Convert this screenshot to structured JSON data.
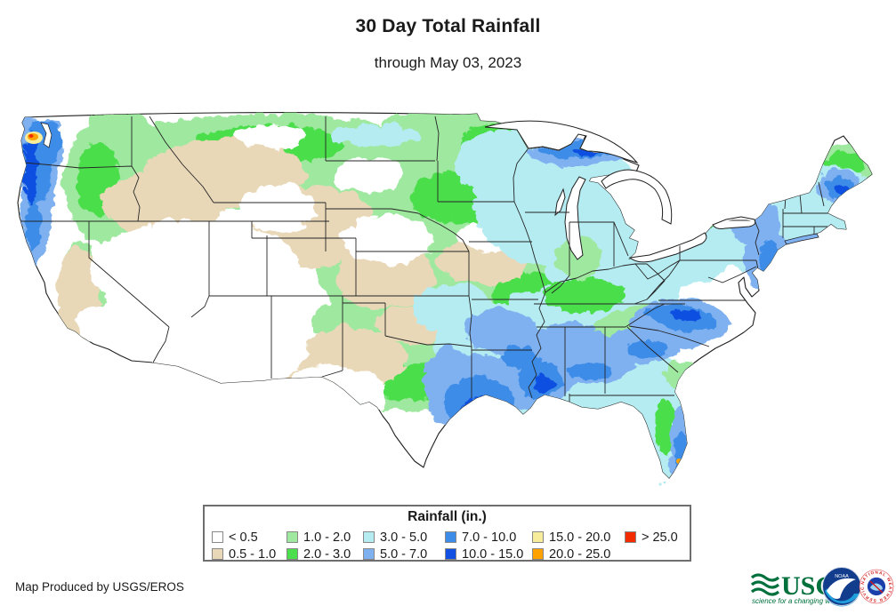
{
  "title": "30 Day Total Rainfall",
  "subtitle": "through May 03, 2023",
  "attribution": "Map Produced by USGS/EROS",
  "legend": {
    "title": "Rainfall (in.)",
    "items": [
      {
        "label": "< 0.5",
        "color": "#ffffff"
      },
      {
        "label": "0.5 - 1.0",
        "color": "#e9d8b8"
      },
      {
        "label": "1.0 - 2.0",
        "color": "#9fe89f"
      },
      {
        "label": "2.0 - 3.0",
        "color": "#4cde4c"
      },
      {
        "label": "3.0 - 5.0",
        "color": "#b5ecf2"
      },
      {
        "label": "5.0 - 7.0",
        "color": "#7fb1f0"
      },
      {
        "label": "7.0 - 10.0",
        "color": "#3d8ce8"
      },
      {
        "label": "10.0 - 15.0",
        "color": "#1150e0"
      },
      {
        "label": "15.0 - 20.0",
        "color": "#f7ec9a"
      },
      {
        "label": "20.0 - 25.0",
        "color": "#ffa200"
      },
      {
        "label": "> 25.0",
        "color": "#f22b00"
      }
    ]
  },
  "logos": {
    "usgs_name": "USGS",
    "usgs_tagline": "science for a changing world",
    "usgs_color": "#00703c",
    "noaa_abbr": "NOAA",
    "nws_text": "NATIONAL WEATHER SERVICE"
  }
}
